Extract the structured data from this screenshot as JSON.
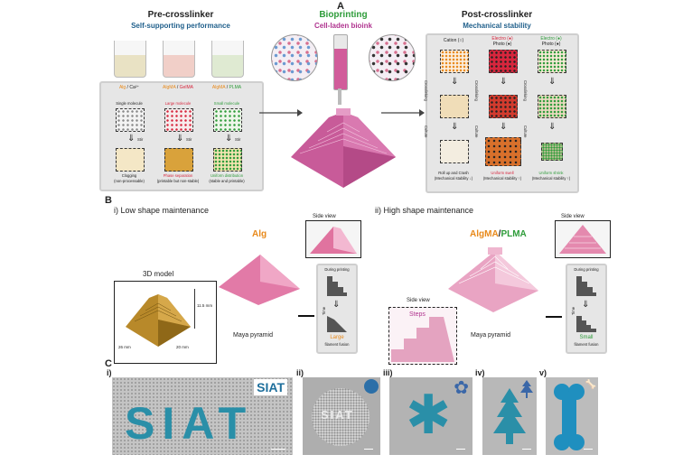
{
  "panelA": {
    "letter": "A",
    "pre": {
      "title": "Pre-crosslinker",
      "subtitle": "Self-supporting performance"
    },
    "bioprint": {
      "title": "Bioprinting",
      "subtitle": "Cell-laden bioink"
    },
    "post": {
      "title": "Post-crosslinker",
      "subtitle": "Mechanical stability"
    },
    "columns": [
      {
        "m1": "Alg",
        "sep": " / ",
        "m2": "Ca²⁺",
        "mol": "Single molecule",
        "action": "Stir",
        "outcome": "Clogging",
        "note": "(non-processable)"
      },
      {
        "m1": "AlgMA",
        "sep": " / ",
        "m2": "GelMA",
        "mol": "Large molecule",
        "action": "Stir",
        "outcome": "Phase separation",
        "note": "(printable but non-stable)"
      },
      {
        "m1": "AlgMA",
        "sep": " / ",
        "m2": "PLMA",
        "mol": "Small molecule",
        "action": "Stir",
        "outcome": "Uniform distribution",
        "note": "(stable and printable)"
      }
    ],
    "post_columns": [
      {
        "h1": "Cation (",
        "h1s": "○",
        "h1e": ")",
        "h2": "",
        "step1": "Crosslinking",
        "step2": "Culture",
        "outcome": "Roll up and Crash",
        "note": "(Mechanical stability ↓)"
      },
      {
        "h1": "Electro (",
        "h1s": "●",
        "h1e": ")",
        "h2": "Photo (●)",
        "step1": "Crosslinking",
        "step2": "Culture",
        "outcome": "Uniform swell",
        "note": "(Mechanical stability ↑)"
      },
      {
        "h1": "Electro (",
        "h1s": "●",
        "h1e": ")",
        "h2": "Photo (●)",
        "step1": "Crosslinking",
        "step2": "Culture",
        "outcome": "Uniform shrink",
        "note": "(Mechanical stability ↑)"
      }
    ]
  },
  "panelB": {
    "letter": "B",
    "left": {
      "heading": "i)  Low shape maintenance",
      "model_title": "3D model",
      "dim_height": "11.5 mm",
      "dim_left": "26 mm",
      "dim_right": "20 mm",
      "material": "Alg",
      "side_view": "Side view",
      "during": "During printing",
      "time": "Time",
      "fusion_size": "Large",
      "fusion": "filament fusion",
      "caption": "Maya pyramid"
    },
    "right": {
      "heading": "ii)  High shape maintenance",
      "material_a": "AlgMA",
      "material_sep": "/",
      "material_b": "PLMA",
      "side_view": "Side view",
      "inset_side": "Side view",
      "steps": "Steps",
      "during": "During printing",
      "time": "Time",
      "fusion_size": "Small",
      "fusion": "filament fusion",
      "caption": "Maya pyramid"
    }
  },
  "panelC": {
    "letter": "C",
    "labels": [
      "i)",
      "ii)",
      "iii)",
      "iv)",
      "v)"
    ],
    "main_text": "SIAT",
    "inset_text": "SIAT",
    "colors": {
      "blue": "#2a8fa8",
      "print_bg": "#b9b9b9"
    }
  },
  "colors": {
    "orange": "#e8891a",
    "red": "#d7263d",
    "green": "#2e9c3a",
    "blue": "#1f5f8b",
    "magenta": "#b0348f",
    "pink": "#e04c8f"
  }
}
